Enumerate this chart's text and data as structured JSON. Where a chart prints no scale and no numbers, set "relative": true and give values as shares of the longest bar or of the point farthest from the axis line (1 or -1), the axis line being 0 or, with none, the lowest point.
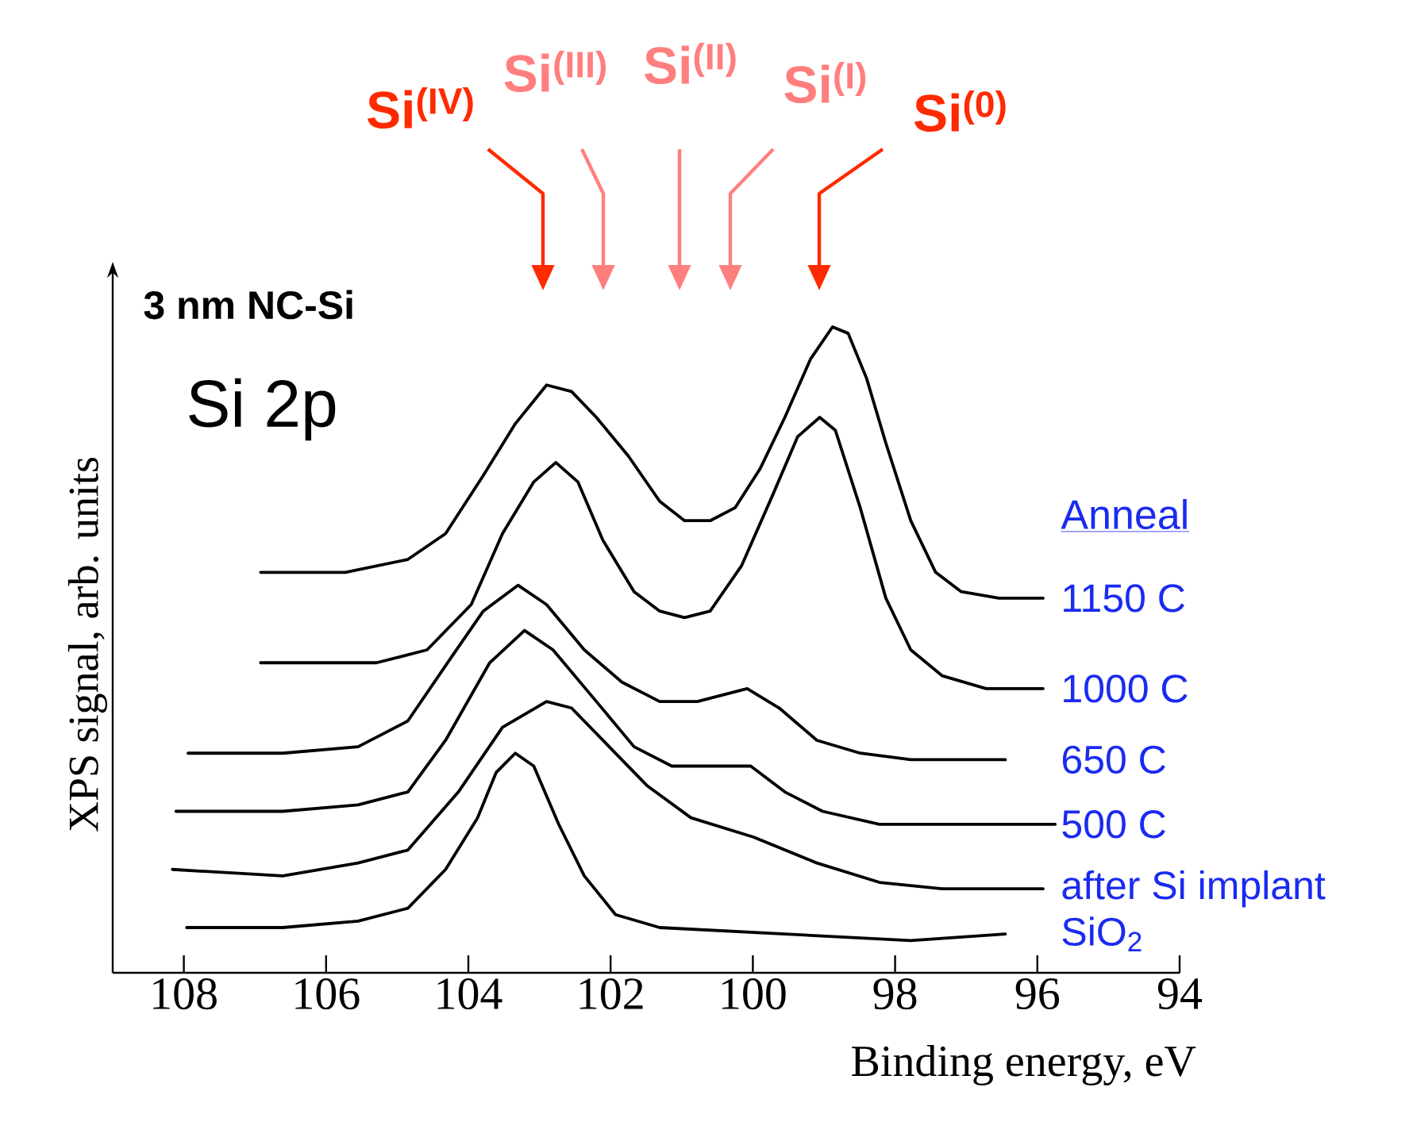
{
  "chart_data": {
    "type": "line",
    "relative": true,
    "marker": "none",
    "xlabel": "Binding energy, eV",
    "ylabel": "XPS signal, arb. units",
    "legend_title": "Anneal",
    "xlim": [
      109,
      94
    ],
    "xticks": [
      108,
      106,
      104,
      102,
      100,
      98,
      96,
      94
    ],
    "annotations": [
      "3 nm NC-Si",
      "Si 2p",
      "Si$^{(IV)}$",
      "Si$^{(III)}$",
      "Si$^{(II)}$",
      "Si$^{(I)}$",
      "Si$^{(0)}$"
    ],
    "series": [
      {
        "name": "1150 C",
        "color": "#000000",
        "x": [
          106.92,
          105.73,
          104.85,
          104.32,
          103.79,
          103.34,
          102.9,
          102.55,
          102.2,
          101.75,
          101.31,
          100.96,
          100.6,
          100.25,
          99.9,
          99.55,
          99.19,
          98.88,
          98.66,
          98.4,
          98.13,
          97.78,
          97.43,
          97.07,
          96.54,
          95.92
        ],
        "values": [
          0.62,
          0.62,
          0.64,
          0.68,
          0.77,
          0.85,
          0.91,
          0.9,
          0.86,
          0.8,
          0.73,
          0.7,
          0.7,
          0.72,
          0.78,
          0.86,
          0.95,
          1.0,
          0.99,
          0.92,
          0.82,
          0.7,
          0.62,
          0.59,
          0.58,
          0.58
        ]
      },
      {
        "name": "1000 C",
        "color": "#000000",
        "x": [
          106.92,
          105.29,
          104.58,
          103.96,
          103.52,
          103.08,
          102.77,
          102.46,
          102.11,
          101.67,
          101.31,
          100.96,
          100.6,
          100.16,
          99.72,
          99.37,
          99.06,
          98.84,
          98.49,
          98.13,
          97.78,
          97.34,
          96.72,
          95.92
        ],
        "values": [
          0.48,
          0.48,
          0.5,
          0.57,
          0.68,
          0.76,
          0.79,
          0.76,
          0.67,
          0.59,
          0.56,
          0.55,
          0.56,
          0.63,
          0.74,
          0.83,
          0.86,
          0.84,
          0.72,
          0.58,
          0.5,
          0.46,
          0.44,
          0.44
        ]
      },
      {
        "name": "650 C",
        "color": "#000000",
        "x": [
          107.94,
          106.61,
          105.55,
          104.85,
          104.23,
          103.79,
          103.3,
          102.9,
          102.37,
          101.84,
          101.31,
          100.78,
          100.08,
          99.63,
          99.1,
          98.49,
          97.78,
          96.45
        ],
        "values": [
          0.34,
          0.34,
          0.35,
          0.39,
          0.49,
          0.56,
          0.6,
          0.57,
          0.5,
          0.45,
          0.42,
          0.42,
          0.44,
          0.41,
          0.36,
          0.34,
          0.33,
          0.33
        ]
      },
      {
        "name": "500 C",
        "color": "#000000",
        "x": [
          108.11,
          106.61,
          105.55,
          104.85,
          104.32,
          103.7,
          103.21,
          102.81,
          102.2,
          101.67,
          101.14,
          100.43,
          100.03,
          99.55,
          99.02,
          98.22,
          96.9,
          95.75
        ],
        "values": [
          0.25,
          0.25,
          0.26,
          0.28,
          0.36,
          0.48,
          0.53,
          0.5,
          0.42,
          0.35,
          0.32,
          0.32,
          0.32,
          0.28,
          0.25,
          0.23,
          0.23,
          0.23
        ]
      },
      {
        "name": "after Si implant",
        "color": "#000000",
        "x": [
          108.16,
          106.61,
          105.55,
          104.85,
          104.14,
          103.52,
          102.9,
          102.55,
          102.02,
          101.49,
          100.87,
          99.99,
          99.1,
          98.22,
          97.34,
          95.92
        ],
        "values": [
          0.16,
          0.15,
          0.17,
          0.19,
          0.28,
          0.38,
          0.42,
          0.41,
          0.35,
          0.29,
          0.24,
          0.21,
          0.17,
          0.14,
          0.13,
          0.13
        ]
      },
      {
        "name": "SiO$_{2}$",
        "color": "#000000",
        "x": [
          107.96,
          106.61,
          105.55,
          104.85,
          104.32,
          103.87,
          103.61,
          103.34,
          103.08,
          102.73,
          102.37,
          101.93,
          101.31,
          99.55,
          97.78,
          96.45
        ],
        "values": [
          0.07,
          0.07,
          0.08,
          0.1,
          0.16,
          0.24,
          0.31,
          0.34,
          0.32,
          0.23,
          0.15,
          0.09,
          0.07,
          0.06,
          0.05,
          0.06
        ]
      }
    ]
  }
}
